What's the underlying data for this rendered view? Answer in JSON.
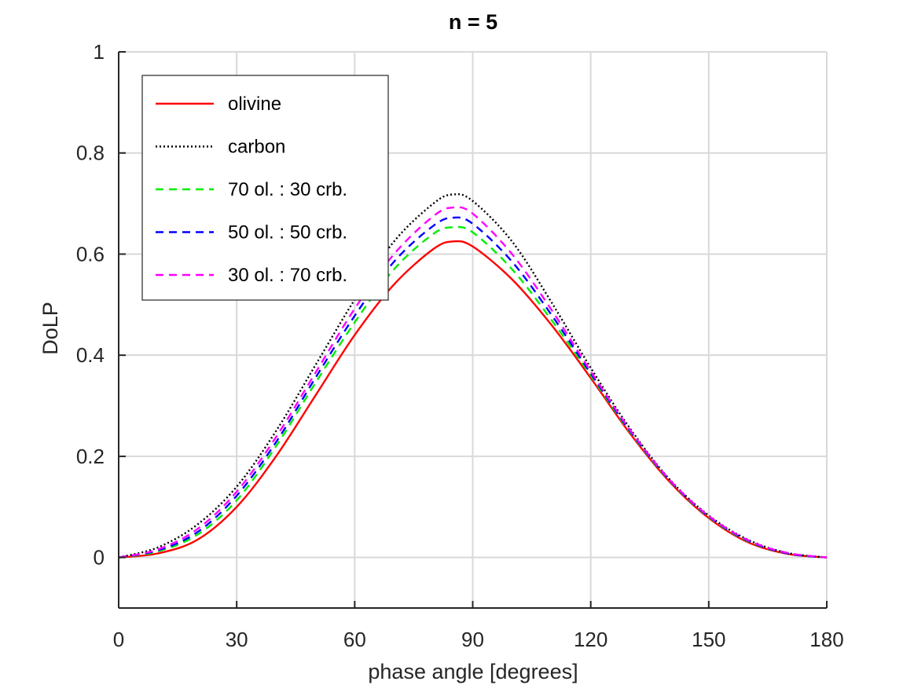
{
  "chart_data": {
    "type": "line",
    "title": "n = 5",
    "xlabel": "phase angle [degrees]",
    "ylabel": "DoLP",
    "xlim": [
      0,
      180
    ],
    "ylim": [
      -0.1,
      1
    ],
    "xticks": [
      0,
      30,
      60,
      90,
      120,
      150,
      180
    ],
    "yticks": [
      0,
      0.2,
      0.4,
      0.6,
      0.8,
      1
    ],
    "xtick_labels": [
      "0",
      "30",
      "60",
      "90",
      "120",
      "150",
      "180"
    ],
    "ytick_labels": [
      "0",
      "0.2",
      "0.4",
      "0.6",
      "0.8",
      "1"
    ],
    "grid": true,
    "legend_position": "top-left",
    "x": [
      0,
      10,
      20,
      30,
      40,
      50,
      60,
      70,
      80,
      85,
      90,
      100,
      110,
      120,
      130,
      140,
      150,
      160,
      170,
      180
    ],
    "series": [
      {
        "name": "olivine",
        "color": "#ff0000",
        "style": "solid",
        "values": [
          0,
          0.008,
          0.035,
          0.1,
          0.2,
          0.32,
          0.44,
          0.54,
          0.61,
          0.625,
          0.615,
          0.55,
          0.46,
          0.355,
          0.245,
          0.15,
          0.078,
          0.03,
          0.007,
          0
        ]
      },
      {
        "name": "carbon",
        "color": "#000000",
        "style": "dotted",
        "values": [
          0,
          0.02,
          0.065,
          0.14,
          0.25,
          0.38,
          0.51,
          0.625,
          0.7,
          0.718,
          0.705,
          0.625,
          0.505,
          0.375,
          0.255,
          0.155,
          0.083,
          0.035,
          0.009,
          0
        ]
      },
      {
        "name": "70 ol. : 30 crb.",
        "color": "#00ee00",
        "style": "dashed",
        "values": [
          0,
          0.012,
          0.045,
          0.113,
          0.22,
          0.345,
          0.465,
          0.57,
          0.64,
          0.653,
          0.643,
          0.57,
          0.47,
          0.36,
          0.248,
          0.152,
          0.08,
          0.032,
          0.008,
          0
        ]
      },
      {
        "name": "50 ol. : 50 crb.",
        "color": "#0000ff",
        "style": "dashed",
        "values": [
          0,
          0.014,
          0.05,
          0.122,
          0.228,
          0.355,
          0.478,
          0.585,
          0.656,
          0.672,
          0.66,
          0.585,
          0.48,
          0.364,
          0.25,
          0.153,
          0.081,
          0.033,
          0.008,
          0
        ]
      },
      {
        "name": "30 ol. : 70 crb.",
        "color": "#ff00ff",
        "style": "dashed",
        "values": [
          0,
          0.016,
          0.056,
          0.13,
          0.238,
          0.365,
          0.492,
          0.6,
          0.675,
          0.692,
          0.68,
          0.6,
          0.49,
          0.368,
          0.252,
          0.154,
          0.082,
          0.034,
          0.009,
          0
        ]
      }
    ]
  }
}
